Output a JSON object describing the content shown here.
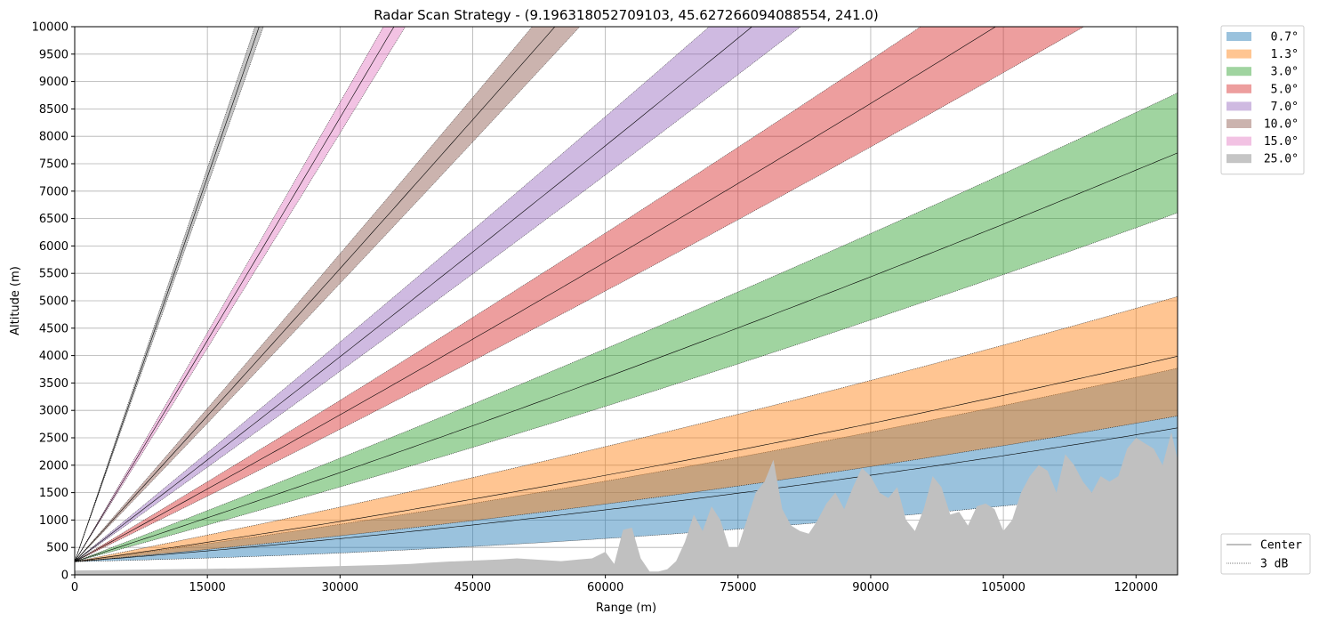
{
  "chart_data": {
    "type": "area",
    "title": "Radar Scan Strategy - (9.196318052709103, 45.627266094088554, 241.0)",
    "xlabel": "Range (m)",
    "ylabel": "Altitude (m)",
    "xlim": [
      0,
      124700
    ],
    "ylim": [
      0,
      10000
    ],
    "xticks": [
      0,
      15000,
      30000,
      45000,
      60000,
      75000,
      90000,
      105000,
      120000
    ],
    "yticks": [
      0,
      500,
      1000,
      1500,
      2000,
      2500,
      3000,
      3500,
      4000,
      4500,
      5000,
      5500,
      6000,
      6500,
      7000,
      7500,
      8000,
      8500,
      9000,
      9500,
      10000
    ],
    "grid": true,
    "radar_altitude": 241,
    "beam_width_deg": 1.0,
    "legend_placement": "outside-top-right",
    "series": [
      {
        "name": "  0.7°",
        "elevation": 0.7,
        "color": "#1f77b4"
      },
      {
        "name": "  1.3°",
        "elevation": 1.3,
        "color": "#ff7f0e"
      },
      {
        "name": "  3.0°",
        "elevation": 3.0,
        "color": "#2ca02c"
      },
      {
        "name": "  5.0°",
        "elevation": 5.0,
        "color": "#d62728"
      },
      {
        "name": "  7.0°",
        "elevation": 7.0,
        "color": "#9467bd"
      },
      {
        "name": " 10.0°",
        "elevation": 10.0,
        "color": "#8c564b"
      },
      {
        "name": " 15.0°",
        "elevation": 15.0,
        "color": "#e377c2"
      },
      {
        "name": " 25.0°",
        "elevation": 25.0,
        "color": "#7f7f7f"
      }
    ],
    "line_legend": [
      {
        "name": "Center",
        "style": "solid"
      },
      {
        "name": "3 dB",
        "style": "dotted"
      }
    ],
    "terrain": {
      "color": "#c0c0c0",
      "x": [
        0,
        5000,
        10000,
        15000,
        20000,
        25000,
        30000,
        35000,
        38000,
        40000,
        42000,
        45000,
        48000,
        50000,
        52000,
        55000,
        57000,
        58500,
        60000,
        61000,
        62000,
        63000,
        64000,
        65000,
        66000,
        67000,
        68000,
        69000,
        70000,
        71000,
        72000,
        73000,
        74000,
        75000,
        76000,
        77000,
        78000,
        79000,
        80000,
        81000,
        82000,
        83000,
        84000,
        85000,
        86000,
        87000,
        88000,
        89000,
        90000,
        91000,
        92000,
        93000,
        94000,
        95000,
        96000,
        97000,
        98000,
        99000,
        100000,
        101000,
        102000,
        103000,
        104000,
        105000,
        106000,
        107000,
        108000,
        109000,
        110000,
        111000,
        112000,
        113000,
        114000,
        115000,
        116000,
        117000,
        118000,
        119000,
        120000,
        121000,
        122000,
        123000,
        124000,
        124700
      ],
      "y": [
        80,
        90,
        100,
        110,
        120,
        140,
        160,
        180,
        200,
        220,
        240,
        260,
        280,
        300,
        280,
        250,
        280,
        300,
        420,
        200,
        820,
        860,
        300,
        60,
        60,
        100,
        250,
        600,
        1100,
        800,
        1250,
        1000,
        500,
        500,
        1000,
        1500,
        1700,
        2100,
        1200,
        900,
        800,
        750,
        1000,
        1300,
        1500,
        1200,
        1600,
        1950,
        1800,
        1500,
        1400,
        1600,
        1000,
        800,
        1200,
        1800,
        1600,
        1100,
        1150,
        900,
        1250,
        1300,
        1200,
        800,
        1000,
        1500,
        1800,
        2000,
        1900,
        1500,
        2200,
        2000,
        1700,
        1500,
        1800,
        1700,
        1800,
        2300,
        2500,
        2400,
        2300,
        2000,
        2600,
        2100
      ]
    }
  }
}
